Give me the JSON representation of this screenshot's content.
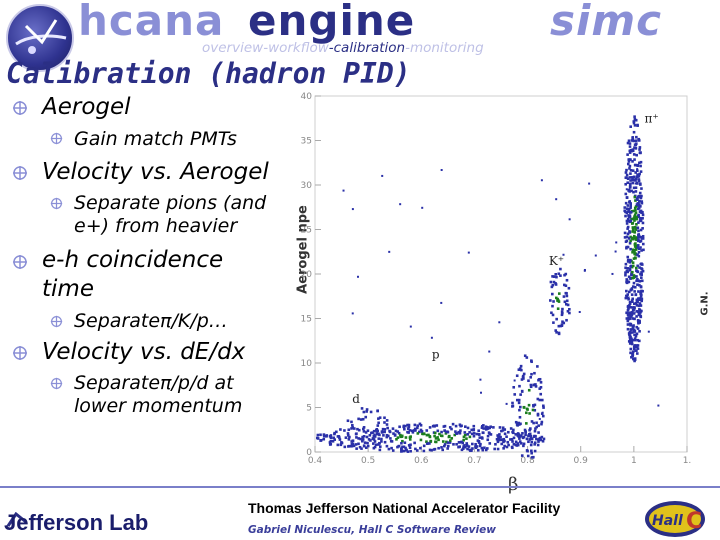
{
  "header": {
    "words": [
      "hcana",
      "engine",
      "simc"
    ],
    "breadcrumb": {
      "items": [
        "overview",
        "-workflow",
        "-calibration",
        "-monitoring"
      ],
      "active_index": 2
    }
  },
  "slide": {
    "title": "Calibration (hadron PID)",
    "bullets": [
      {
        "level": 1,
        "text": "Aerogel"
      },
      {
        "level": 2,
        "text": "Gain match PMTs"
      },
      {
        "level": 1,
        "text": "Velocity vs. Aerogel"
      },
      {
        "level": 2,
        "lines": [
          "Separate pions (and",
          "e+) from heavier"
        ]
      },
      {
        "level": 1,
        "lines": [
          "e-h coincidence",
          "time"
        ]
      },
      {
        "level": 2,
        "text": "Separateπ/K/p…"
      },
      {
        "level": 1,
        "text": "Velocity vs. dE/dx"
      },
      {
        "level": 2,
        "lines": [
          "Separateπ/p/d at",
          "lower momentum"
        ]
      }
    ]
  },
  "chart_data": {
    "type": "heatmap",
    "xlabel": "β",
    "ylabel": "Aerogel npe",
    "xlim": [
      0.4,
      1.1
    ],
    "ylim": [
      0,
      40
    ],
    "x_ticks": [
      "0.4",
      "0.5",
      "0.6",
      "0.7",
      "0.8",
      "0.9",
      "1",
      "1."
    ],
    "y_ticks": [
      "0",
      "5",
      "10",
      "15",
      "20",
      "25",
      "30",
      "35",
      "40"
    ],
    "annotations": [
      {
        "text": "π⁺",
        "x": 1.02,
        "y": 37
      },
      {
        "text": "K⁺",
        "x": 0.84,
        "y": 21
      },
      {
        "text": "p",
        "x": 0.62,
        "y": 10.5
      },
      {
        "text": "d",
        "x": 0.47,
        "y": 5.5
      }
    ],
    "side_label": "G.N.",
    "colors": {
      "contour": "#2a30a8",
      "high": "#1b7d1e"
    }
  },
  "footer": {
    "lab": "Jefferson Lab",
    "facility": "Thomas Jefferson National Accelerator Facility",
    "author": "Gabriel Niculescu, Hall C Software Review",
    "hall_logo": "Hall C"
  },
  "colors": {
    "accent": "#2b2f85",
    "header_light": "#8a8fd6"
  }
}
